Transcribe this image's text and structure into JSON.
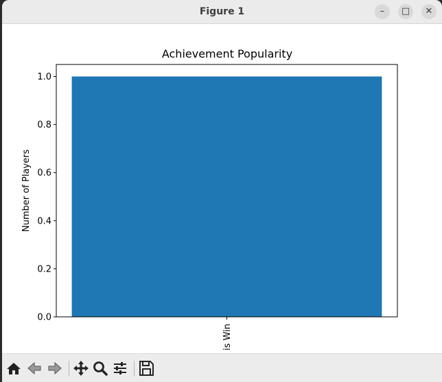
{
  "window": {
    "title": "Figure 1",
    "controls": {
      "minimize": "–",
      "maximize": "□",
      "close": "✕"
    }
  },
  "chart_data": {
    "type": "bar",
    "title": "Achievement Popularity",
    "xlabel": "",
    "ylabel": "Number of Players",
    "categories": [
      "is Win"
    ],
    "values": [
      1
    ],
    "ylim": [
      0,
      1.05
    ],
    "yticks": [
      0.0,
      0.2,
      0.4,
      0.6,
      0.8,
      1.0
    ],
    "ytick_labels": [
      "0.0",
      "0.2",
      "0.4",
      "0.6",
      "0.8",
      "1.0"
    ],
    "bar_color": "#1f77b4",
    "grid": false,
    "legend": "none"
  },
  "toolbar": {
    "items": [
      "home-icon",
      "back-icon",
      "forward-icon",
      "pan-icon",
      "zoom-icon",
      "configure-icon",
      "save-icon"
    ]
  }
}
